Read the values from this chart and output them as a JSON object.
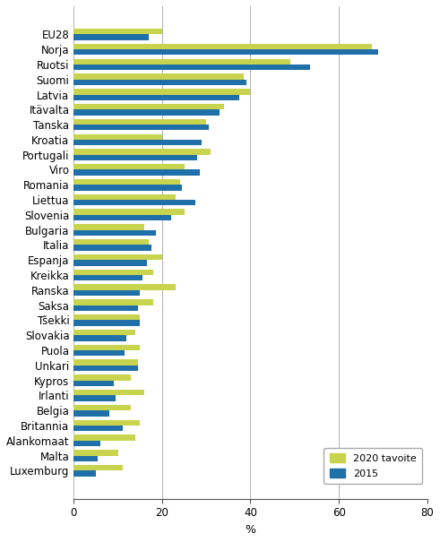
{
  "categories": [
    "EU28",
    "Norja",
    "Ruotsi",
    "Suomi",
    "Latvia",
    "Itävalta",
    "Tanska",
    "Kroatia",
    "Portugali",
    "Viro",
    "Romania",
    "Liettua",
    "Slovenia",
    "Bulgaria",
    "Italia",
    "Espanja",
    "Kreikka",
    "Ranska",
    "Saksa",
    "Tšekki",
    "Slovakia",
    "Puola",
    "Unkari",
    "Kypros",
    "Irlanti",
    "Belgia",
    "Britannia",
    "Alankomaat",
    "Malta",
    "Luxemburg"
  ],
  "values_2020": [
    20,
    67.5,
    49,
    38.5,
    40,
    34,
    30,
    20,
    31,
    25,
    24,
    23,
    25,
    16,
    17,
    20,
    18,
    23,
    18,
    15,
    14,
    15,
    14.5,
    13,
    16,
    13,
    15,
    14,
    10,
    11
  ],
  "values_2015": [
    17,
    69,
    53.5,
    39,
    37.5,
    33,
    30.5,
    29,
    28,
    28.5,
    24.5,
    27.5,
    22,
    18.5,
    17.5,
    16.5,
    15.5,
    15,
    14.5,
    15,
    12,
    11.5,
    14.5,
    9,
    9.5,
    8,
    11,
    6,
    5.5,
    5
  ],
  "color_2020": "#c8d44e",
  "color_2015": "#1f6fa8",
  "xlabel": "%",
  "legend_2020": "2020 tavoite",
  "legend_2015": "2015",
  "xlim": [
    0,
    80
  ],
  "xticks": [
    0,
    20,
    40,
    60,
    80
  ],
  "background_color": "#ffffff",
  "grid_color": "#b0b0b0"
}
